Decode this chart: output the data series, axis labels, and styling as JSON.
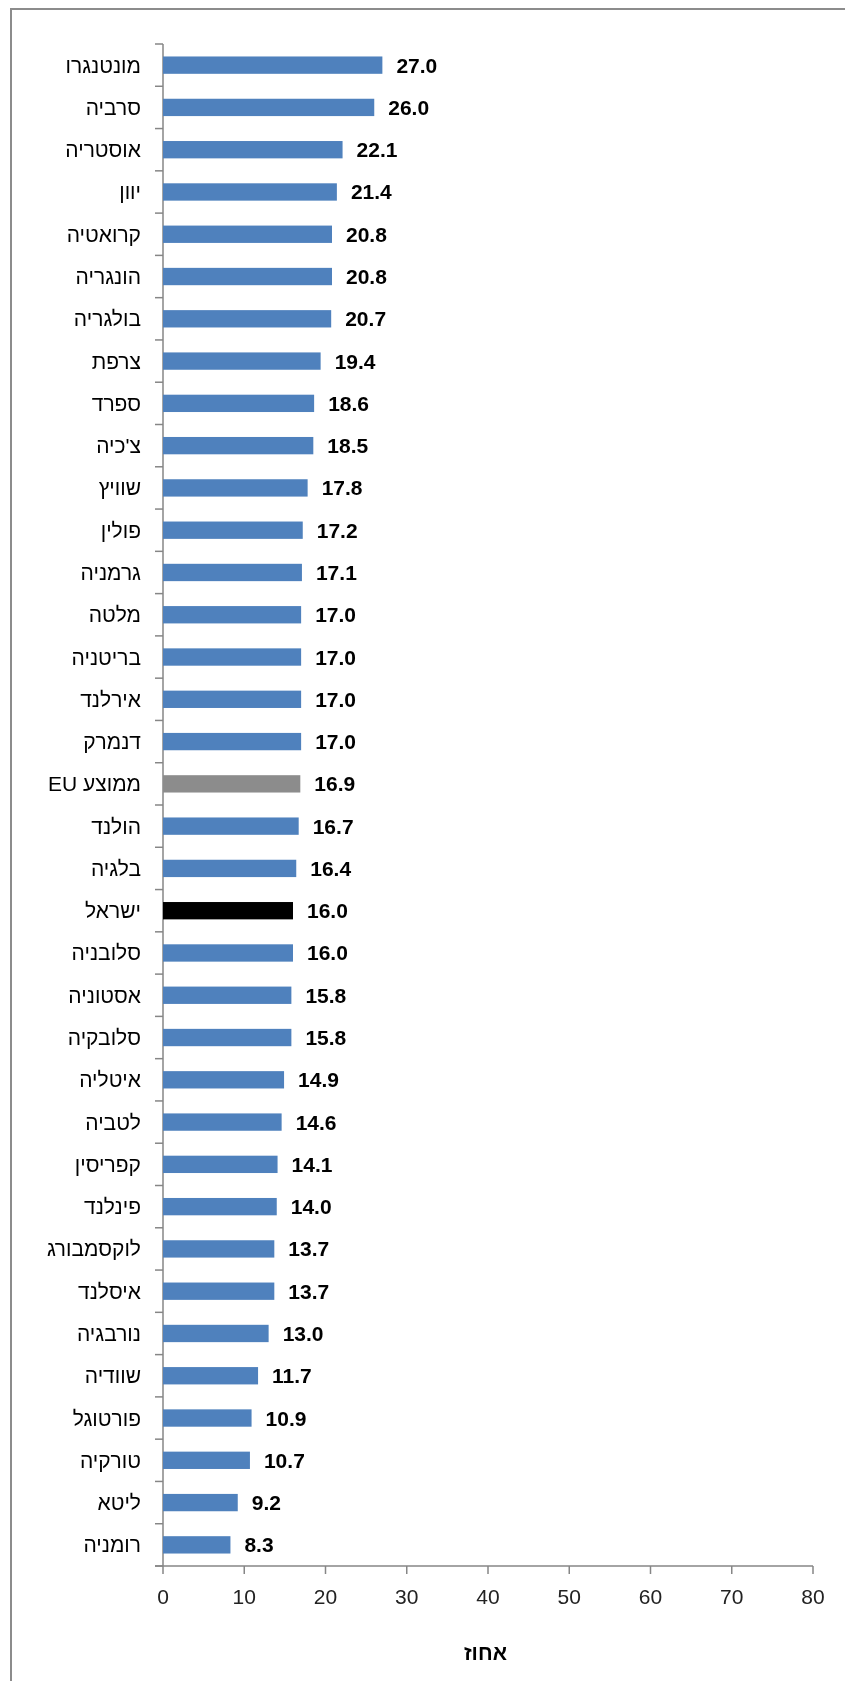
{
  "chart_data": {
    "type": "bar",
    "orientation": "horizontal",
    "xlabel": "אחוז",
    "categories": [
      "מונטנגרו",
      "סרביה",
      "אוסטריה",
      "יוון",
      "קרואטיה",
      "הונגריה",
      "בולגריה",
      "צרפת",
      "ספרד",
      "צ'כיה",
      "שוויץ",
      "פולין",
      "גרמניה",
      "מלטה",
      "בריטניה",
      "אירלנד",
      "דנמרק",
      "ממוצע EU",
      "הולנד",
      "בלגיה",
      "ישראל",
      "סלובניה",
      "אסטוניה",
      "סלובקיה",
      "איטליה",
      "לטביה",
      "קפריסין",
      "פינלנד",
      "לוקסמבורג",
      "איסלנד",
      "נורבגיה",
      "שוודיה",
      "פורטוגל",
      "טורקיה",
      "ליטא",
      "רומניה"
    ],
    "values": [
      27.0,
      26.0,
      22.1,
      21.4,
      20.8,
      20.8,
      20.7,
      19.4,
      18.6,
      18.5,
      17.8,
      17.2,
      17.1,
      17.0,
      17.0,
      17.0,
      17.0,
      16.9,
      16.7,
      16.4,
      16.0,
      16.0,
      15.8,
      15.8,
      14.9,
      14.6,
      14.1,
      14.0,
      13.7,
      13.7,
      13.0,
      11.7,
      10.9,
      10.7,
      9.2,
      8.3
    ],
    "value_labels": [
      "27.0",
      "26.0",
      "22.1",
      "21.4",
      "20.8",
      "20.8",
      "20.7",
      "19.4",
      "18.6",
      "18.5",
      "17.8",
      "17.2",
      "17.1",
      "17.0",
      "17.0",
      "17.0",
      "17.0",
      "16.9",
      "16.7",
      "16.4",
      "16.0",
      "16.0",
      "15.8",
      "15.8",
      "14.9",
      "14.6",
      "14.1",
      "14.0",
      "13.7",
      "13.7",
      "13.0",
      "11.7",
      "10.9",
      "10.7",
      "9.2",
      "8.3"
    ],
    "colors": [
      "#4f81bd",
      "#4f81bd",
      "#4f81bd",
      "#4f81bd",
      "#4f81bd",
      "#4f81bd",
      "#4f81bd",
      "#4f81bd",
      "#4f81bd",
      "#4f81bd",
      "#4f81bd",
      "#4f81bd",
      "#4f81bd",
      "#4f81bd",
      "#4f81bd",
      "#4f81bd",
      "#4f81bd",
      "#8c8c8c",
      "#4f81bd",
      "#4f81bd",
      "#000000",
      "#4f81bd",
      "#4f81bd",
      "#4f81bd",
      "#4f81bd",
      "#4f81bd",
      "#4f81bd",
      "#4f81bd",
      "#4f81bd",
      "#4f81bd",
      "#4f81bd",
      "#4f81bd",
      "#4f81bd",
      "#4f81bd",
      "#4f81bd",
      "#4f81bd"
    ],
    "xlim": [
      0,
      80
    ],
    "xticks": [
      0,
      10,
      20,
      30,
      40,
      50,
      60,
      70,
      80
    ]
  }
}
